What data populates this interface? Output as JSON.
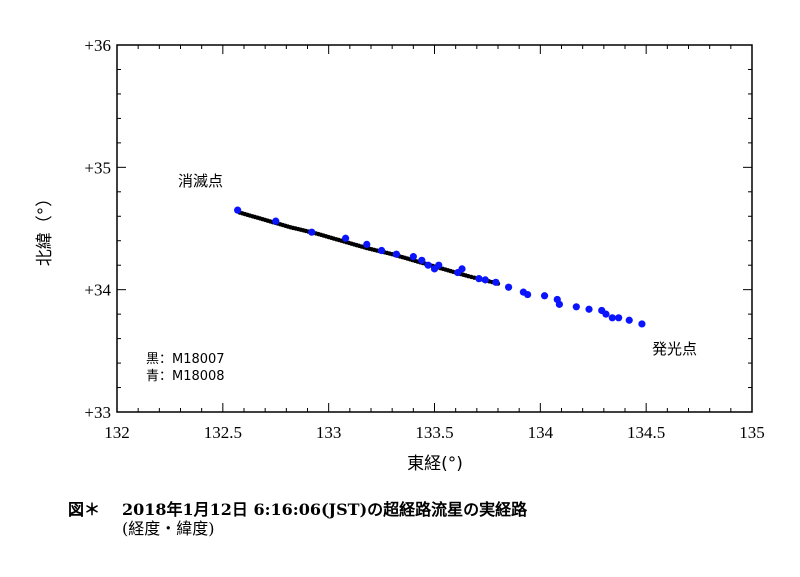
{
  "chart_data": {
    "type": "scatter",
    "xlabel": "東経(°)",
    "ylabel": "北緯（°）",
    "xlim": [
      132,
      135
    ],
    "ylim": [
      33,
      36
    ],
    "xticks": [
      "132",
      "132.5",
      "133",
      "133.5",
      "134",
      "134.5",
      "135"
    ],
    "yticks": [
      "+33",
      "+34",
      "+35",
      "+36"
    ],
    "grid": false,
    "annotations": {
      "end_point": "消滅点",
      "start_point": "発光点"
    },
    "legend": {
      "black": "黒：M18007",
      "blue": "青：M18008",
      "placement": "bottom-left"
    },
    "series": [
      {
        "color": "#000000",
        "x": [
          132.58,
          132.7,
          132.82,
          132.94,
          133.06,
          133.18,
          133.3,
          133.42,
          133.54,
          133.66,
          133.8
        ],
        "y": [
          34.63,
          34.57,
          34.51,
          34.46,
          34.4,
          34.34,
          34.29,
          34.23,
          34.17,
          34.11,
          34.05
        ]
      },
      {
        "color": "#0a14ff",
        "x": [
          132.57,
          132.75,
          132.92,
          133.08,
          133.18,
          133.25,
          133.32,
          133.4,
          133.44,
          133.47,
          133.5,
          133.52,
          133.61,
          133.63,
          133.71,
          133.74,
          133.79,
          133.85,
          133.92,
          133.94,
          134.02,
          134.08,
          134.09,
          134.17,
          134.23,
          134.29,
          134.31,
          134.34,
          134.37,
          134.42,
          134.48
        ],
        "y": [
          34.65,
          34.56,
          34.47,
          34.42,
          34.37,
          34.32,
          34.29,
          34.27,
          34.24,
          34.2,
          34.17,
          34.2,
          34.14,
          34.17,
          34.09,
          34.08,
          34.06,
          34.02,
          33.98,
          33.96,
          33.95,
          33.92,
          33.88,
          33.86,
          33.84,
          33.83,
          33.8,
          33.77,
          33.77,
          33.75,
          33.72
        ]
      }
    ]
  },
  "caption": {
    "label": "図＊",
    "line1": "2018年1月12日 6:16:06(JST)の超経路流星の実経路",
    "line2": "(経度・緯度)"
  }
}
